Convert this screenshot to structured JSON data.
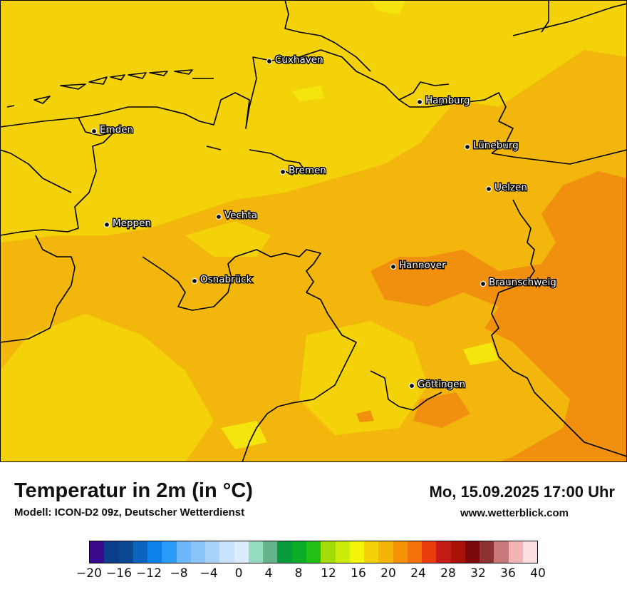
{
  "title": "Temperatur in 2m (in °C)",
  "model": "Modell: ICON-D2 09z, Deutscher Wetterdienst",
  "datetime": "Mo, 15.09.2025 17:00 Uhr",
  "website": "www.wetterblick.com",
  "cities": [
    {
      "name": "Cuxhaven",
      "dot": "cuxhaven"
    },
    {
      "name": "Hamburg",
      "dot": "hamburg"
    },
    {
      "name": "Emden",
      "dot": "emden"
    },
    {
      "name": "Lüneburg",
      "dot": "lueneburg"
    },
    {
      "name": "Bremen",
      "dot": "bremen"
    },
    {
      "name": "Uelzen",
      "dot": "uelzen"
    },
    {
      "name": "Vechta",
      "dot": "vechta"
    },
    {
      "name": "Meppen",
      "dot": "meppen"
    },
    {
      "name": "Hannover",
      "dot": "hannover"
    },
    {
      "name": "Osnabrück",
      "dot": "osnabrueck"
    },
    {
      "name": "Braunschweig",
      "dot": "braunschweig"
    },
    {
      "name": "Göttingen",
      "dot": "goettingen"
    }
  ],
  "colorbar": {
    "colors": [
      "#3a0a8c",
      "#0a3e8a",
      "#0a4a94",
      "#0a64c0",
      "#0a82e8",
      "#2c9cfa",
      "#6cb8fc",
      "#8cc4fc",
      "#a8d4fc",
      "#c8e2fc",
      "#dcecfc",
      "#96dcc0",
      "#64b48c",
      "#0a9c3c",
      "#0aac28",
      "#22c014",
      "#a4dc0a",
      "#ccec0a",
      "#f4f40a",
      "#f4d20a",
      "#f4b40a",
      "#f4920a",
      "#f4720a",
      "#e83c0a",
      "#c41c14",
      "#a8140a",
      "#7c0a0a",
      "#8c3232",
      "#c87878",
      "#f4b4b4",
      "#fce0e0"
    ],
    "ticks": [
      "−20",
      "−16",
      "−12",
      "−8",
      "−4",
      "0",
      "4",
      "8",
      "12",
      "16",
      "20",
      "24",
      "28",
      "32",
      "36",
      "40"
    ],
    "min": -20,
    "max": 40
  },
  "field_colors": {
    "t16": "#f4d20a",
    "t18": "#f4e60c",
    "t20": "#f2b60c",
    "t22": "#f1900f",
    "t24": "#f3b10d"
  }
}
